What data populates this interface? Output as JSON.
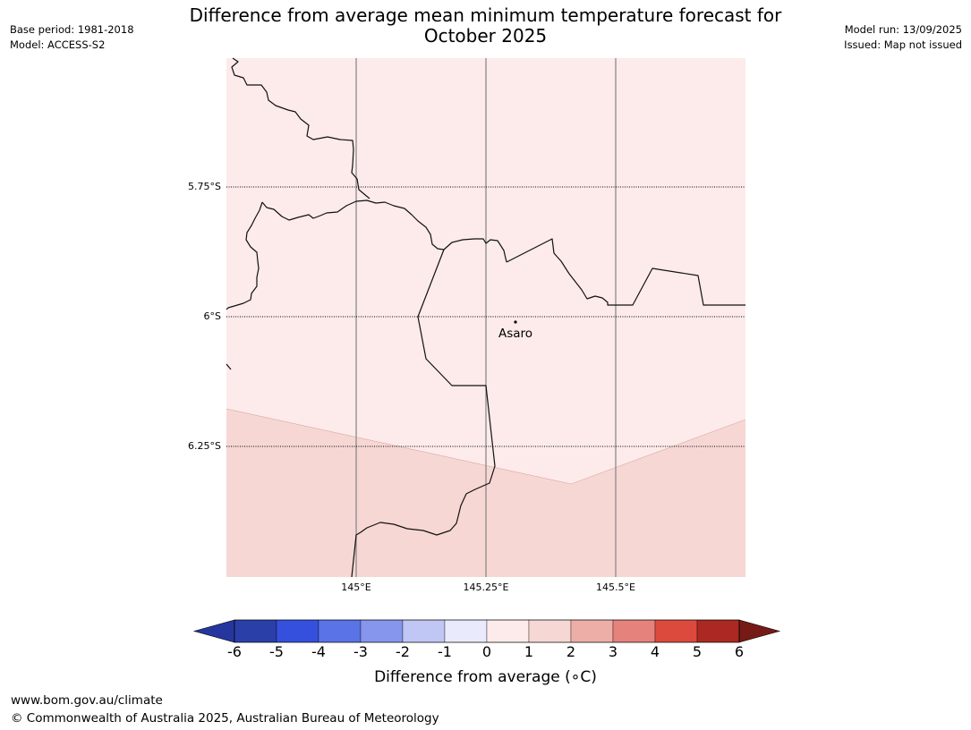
{
  "title_line1": "Difference from average mean minimum temperature forecast for",
  "title_line2": "October 2025",
  "meta_left": {
    "base_period": "Base period: 1981-2018",
    "model": "Model: ACCESS-S2"
  },
  "meta_right": {
    "model_run": "Model run: 13/09/2025",
    "issued": "Issued: Map not issued"
  },
  "map": {
    "lat_labels": [
      "5.75°S",
      "6°S",
      "6.25°S"
    ],
    "lon_labels": [
      "145°E",
      "145.25°E",
      "145.5°E"
    ],
    "place": {
      "name": "Asaro"
    },
    "anomaly_colors": {
      "0_to_1": "#fcebea",
      "1_to_2": "#f6d7d4"
    }
  },
  "colorbar": {
    "ticks": [
      "-6",
      "-5",
      "-4",
      "-3",
      "-2",
      "-1",
      "0",
      "1",
      "2",
      "3",
      "4",
      "5",
      "6"
    ],
    "colors": [
      "#25379e",
      "#2a3fa8",
      "#3450dd",
      "#5a73e6",
      "#8696ec",
      "#c0c7f4",
      "#e9ebfc",
      "#fcebea",
      "#f6d7d4",
      "#eeaea8",
      "#e5827c",
      "#dc4a3e",
      "#ab2922",
      "#761a16"
    ],
    "label": "Difference from average (∘C)"
  },
  "footer": {
    "url": "www.bom.gov.au/climate",
    "copyright": "© Commonwealth of Australia 2025, Australian Bureau of Meteorology"
  }
}
